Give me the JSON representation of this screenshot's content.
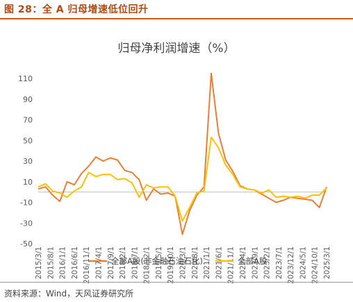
{
  "figure_label": "图 28：全 A 归母增速低位回升",
  "source": "资料来源：Wind，天风证券研究所",
  "colors": {
    "brand": "#c45a1c",
    "series1": "#ed7d31",
    "series2": "#ffc000"
  },
  "chart_data": {
    "type": "line",
    "title": "归母净利润增速（%）",
    "xlabel": "",
    "ylabel": "",
    "ylim": [
      -50,
      110
    ],
    "yticks": [
      110,
      90,
      70,
      50,
      30,
      10,
      -10,
      -30,
      -50
    ],
    "grid": false,
    "legend_position": "bottom",
    "x": [
      "2015/3/1",
      "2015/6/1",
      "2015/9/1",
      "2015/12/1",
      "2016/3/1",
      "2016/6/1",
      "2016/9/1",
      "2016/12/1",
      "2017/3/1",
      "2017/6/1",
      "2017/9/1",
      "2017/12/1",
      "2018/3/1",
      "2018/6/1",
      "2018/9/1",
      "2018/12/1",
      "2019/3/1",
      "2019/6/1",
      "2019/9/1",
      "2019/12/1",
      "2020/3/1",
      "2020/6/1",
      "2020/9/1",
      "2020/12/1",
      "2021/3/1",
      "2021/6/1",
      "2021/9/1",
      "2021/12/1",
      "2022/3/1",
      "2022/6/1",
      "2022/9/1",
      "2022/12/1",
      "2023/3/1",
      "2023/6/1",
      "2023/9/1",
      "2023/12/1",
      "2024/3/1",
      "2024/6/1",
      "2024/9/1",
      "2024/12/1",
      "2025/3/1"
    ],
    "xtick_labels": [
      "2015/3/1",
      "2015/8/1",
      "2016/1/1",
      "2016/6/1",
      "2016/11/1",
      "2017/4/1",
      "2017/9/1",
      "2018/2/1",
      "2018/7/1",
      "2018/12/1",
      "2019/5/1",
      "2019/10/1",
      "2020/3/1",
      "2020/8/1",
      "2021/1/1",
      "2021/6/1",
      "2021/11/1",
      "2022/4/1",
      "2022/9/1",
      "2023/2/1",
      "2023/7/1",
      "2023/12/1",
      "2024/5/1",
      "2024/10/1",
      "2025/3/1"
    ],
    "series": [
      {
        "name": "全部A股(非金融石油石化)",
        "color": "#ed7d31",
        "values": [
          3,
          5,
          -3,
          -9,
          10,
          7,
          18,
          25,
          34,
          30,
          33,
          31,
          21,
          19,
          12,
          -8,
          3,
          -2,
          -1,
          -4,
          -41,
          -18,
          -3,
          5,
          115,
          57,
          31,
          20,
          6,
          3,
          2,
          -2,
          -6,
          -10,
          -8,
          -5,
          -6,
          -7,
          -8,
          -15,
          5
        ]
      },
      {
        "name": "全部A股",
        "color": "#ffc000",
        "values": [
          5,
          8,
          1,
          -1,
          -5,
          1,
          5,
          19,
          15,
          17,
          17,
          12,
          13,
          9,
          -5,
          7,
          4,
          5,
          5,
          -4,
          -28,
          -15,
          -1,
          1,
          53,
          43,
          26,
          17,
          5,
          3,
          2,
          -1,
          2,
          -5,
          -4,
          -5,
          -4,
          -6,
          -3,
          -3,
          4
        ]
      }
    ]
  }
}
